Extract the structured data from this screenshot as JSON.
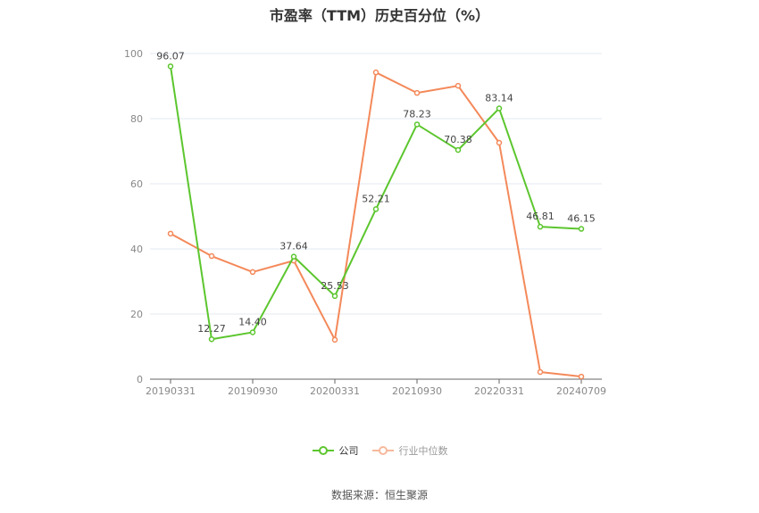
{
  "title": "市盈率（TTM）历史百分位（%）",
  "legend": {
    "company_label": "公司",
    "industry_label": "行业中位数"
  },
  "source": "数据来源：恒生聚源",
  "colors": {
    "company": "#5cc62e",
    "industry": "#f4895a",
    "grid": "#e3e8f0",
    "axis": "#666666"
  },
  "chart_data": {
    "type": "line",
    "title": "市盈率（TTM）历史百分位（%）",
    "xlabel": "",
    "ylabel": "",
    "ylim": [
      0,
      100
    ],
    "yticks": [
      0,
      20,
      40,
      60,
      80,
      100
    ],
    "x_tick_labels": [
      "20190331",
      "20190930",
      "20200331",
      "20210930",
      "20220331",
      "20240709"
    ],
    "categories": [
      "20190331",
      "",
      "20190930",
      "",
      "20200331",
      "",
      "20210930",
      "",
      "20220331",
      "",
      "20240709"
    ],
    "grid": true,
    "legend_position": "bottom",
    "series": [
      {
        "name": "公司",
        "values": [
          96.07,
          12.27,
          14.4,
          37.64,
          25.53,
          52.21,
          78.23,
          70.38,
          83.14,
          46.81,
          46.15
        ],
        "labels": [
          "96.07",
          "12.27",
          "14.40",
          "37.64",
          "25.53",
          "52.21",
          "78.23",
          "70.38",
          "83.14",
          "46.81",
          "46.15"
        ]
      },
      {
        "name": "行业中位数",
        "values": [
          44.7,
          37.8,
          32.9,
          36.4,
          12.1,
          94.2,
          87.9,
          90.1,
          72.6,
          2.2,
          0.8
        ]
      }
    ]
  }
}
